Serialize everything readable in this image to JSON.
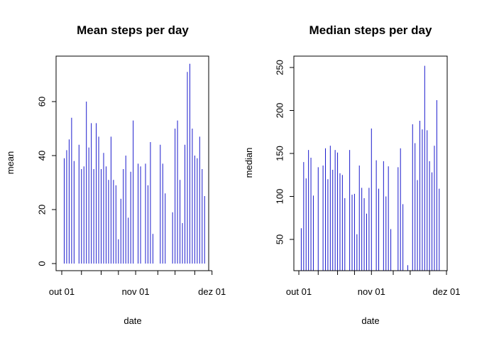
{
  "colors": {
    "bar": "#1a1acd",
    "axis": "#000000",
    "background": "#ffffff"
  },
  "chart_data": [
    {
      "type": "bar",
      "title": "Mean steps per day",
      "xlabel": "date",
      "ylabel": "mean",
      "grid": false,
      "xlim": [
        0,
        61
      ],
      "ylim": [
        0,
        75
      ],
      "yticks": [
        0,
        20,
        40,
        60
      ],
      "ytick_labels": [
        "0",
        "20",
        "40",
        "60"
      ],
      "xticks": [
        1,
        31,
        62
      ],
      "xtick_labels": [
        "out 01",
        "nov 01",
        "dez 01"
      ],
      "xminor": [
        9,
        17,
        24,
        40,
        47,
        55
      ],
      "x": [
        1,
        2,
        3,
        4,
        5,
        6,
        7,
        8,
        9,
        10,
        11,
        12,
        13,
        14,
        15,
        16,
        17,
        18,
        19,
        20,
        21,
        22,
        23,
        24,
        25,
        26,
        27,
        28,
        29,
        30,
        31,
        32,
        33,
        34,
        35,
        36,
        37,
        38,
        39,
        40,
        41,
        42,
        43,
        44,
        45,
        46,
        47,
        48,
        49,
        50,
        51,
        52,
        53,
        54,
        55,
        56,
        57,
        58,
        59,
        60,
        61
      ],
      "values": [
        0,
        39,
        42,
        46,
        54,
        38,
        0,
        44,
        35,
        36,
        60,
        43,
        52,
        35,
        52,
        47,
        35,
        41,
        36,
        31,
        47,
        31,
        29,
        9,
        24,
        35,
        40,
        17,
        34,
        53,
        0,
        37,
        36,
        0,
        37,
        29,
        45,
        11,
        0,
        0,
        44,
        37,
        26,
        0,
        0,
        19,
        50,
        53,
        31,
        15,
        44,
        71,
        74,
        50,
        40,
        39,
        47,
        35,
        25,
        0,
        0
      ]
    },
    {
      "type": "bar",
      "title": "Median steps per day",
      "xlabel": "date",
      "ylabel": "median",
      "grid": false,
      "xlim": [
        0,
        61
      ],
      "ylim": [
        10,
        262
      ],
      "yticks": [
        50,
        100,
        150,
        200,
        250
      ],
      "ytick_labels": [
        "50",
        "100",
        "150",
        "200",
        "250"
      ],
      "xticks": [
        1,
        31,
        62
      ],
      "xtick_labels": [
        "out 01",
        "nov 01",
        "dez 01"
      ],
      "xminor": [
        9,
        17,
        24,
        40,
        47,
        55
      ],
      "x": [
        1,
        2,
        3,
        4,
        5,
        6,
        7,
        8,
        9,
        10,
        11,
        12,
        13,
        14,
        15,
        16,
        17,
        18,
        19,
        20,
        21,
        22,
        23,
        24,
        25,
        26,
        27,
        28,
        29,
        30,
        31,
        32,
        33,
        34,
        35,
        36,
        37,
        38,
        39,
        40,
        41,
        42,
        43,
        44,
        45,
        46,
        47,
        48,
        49,
        50,
        51,
        52,
        53,
        54,
        55,
        56,
        57,
        58,
        59,
        60,
        61
      ],
      "values": [
        0,
        63,
        140,
        121,
        154,
        145,
        101,
        0,
        134,
        0,
        136,
        156,
        120,
        159,
        131,
        154,
        151,
        127,
        125,
        98,
        0,
        154,
        102,
        103,
        56,
        136,
        110,
        98,
        80,
        110,
        179,
        0,
        142,
        109,
        0,
        141,
        100,
        135,
        62,
        0,
        0,
        134,
        156,
        91,
        0,
        20,
        0,
        184,
        162,
        119,
        188,
        178,
        252,
        177,
        141,
        128,
        159,
        212,
        109,
        0,
        0
      ]
    }
  ]
}
